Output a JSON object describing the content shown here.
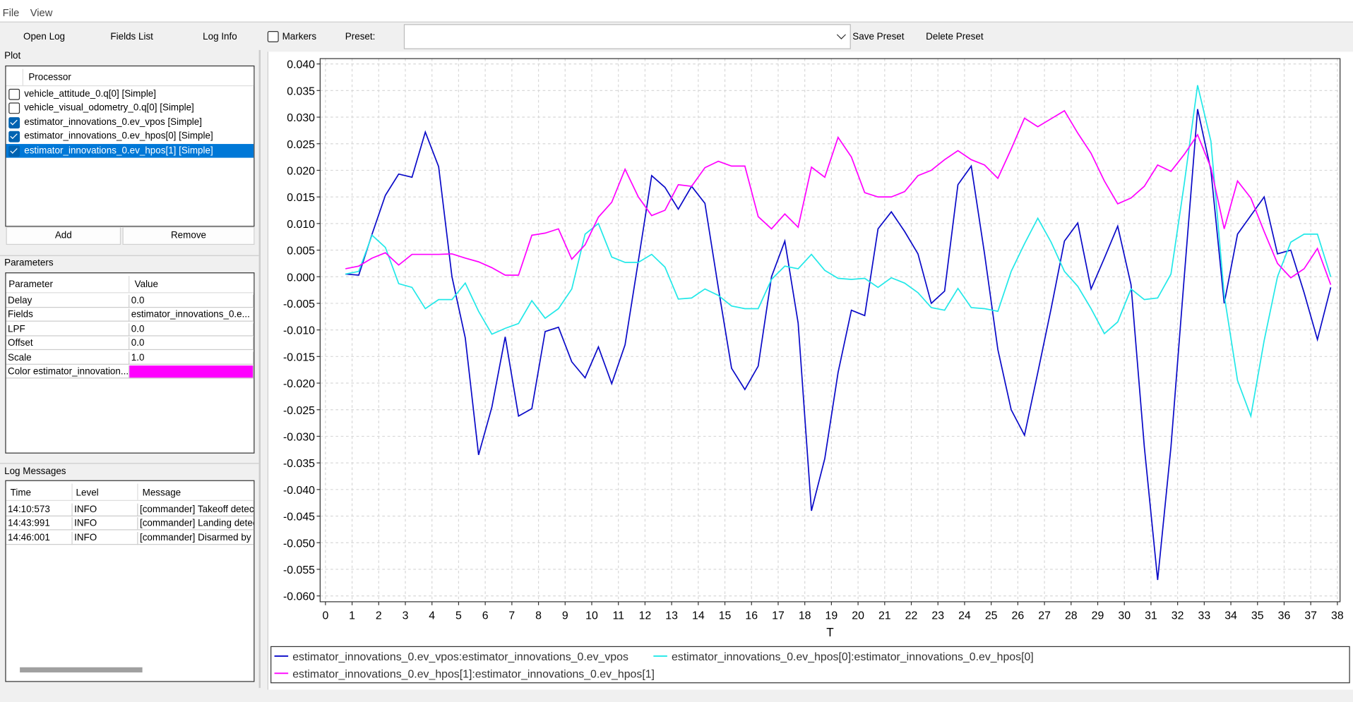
{
  "menu": [
    "File",
    "View"
  ],
  "toolbar": {
    "buttons": [
      "Open Log",
      "Fields List",
      "Log Info"
    ],
    "markers": {
      "label": "Markers",
      "checked": false
    },
    "preset_label": "Preset:",
    "save": "Save Preset",
    "delete": "Delete Preset"
  },
  "plot_panel": {
    "title": "Plot",
    "header": "Processor",
    "items": [
      {
        "label": "vehicle_attitude_0.q[0] [Simple]",
        "checked": false
      },
      {
        "label": "vehicle_visual_odometry_0.q[0] [Simple]",
        "checked": false
      },
      {
        "label": "estimator_innovations_0.ev_vpos [Simple]",
        "checked": true
      },
      {
        "label": "estimator_innovations_0.ev_hpos[0] [Simple]",
        "checked": true
      },
      {
        "label": "estimator_innovations_0.ev_hpos[1] [Simple]",
        "checked": true,
        "selected": true
      }
    ],
    "add": "Add",
    "remove": "Remove"
  },
  "parameters": {
    "title": "Parameters",
    "headers": [
      "Parameter",
      "Value"
    ],
    "rows": [
      {
        "name": "Delay",
        "value": "0.0"
      },
      {
        "name": "Fields",
        "value": "estimator_innovations_0.e..."
      },
      {
        "name": "LPF",
        "value": "0.0"
      },
      {
        "name": "Offset",
        "value": "0.0"
      },
      {
        "name": "Scale",
        "value": "1.0"
      },
      {
        "name": "Color estimator_innovation...",
        "color": "#ff00ff"
      }
    ]
  },
  "log_messages": {
    "title": "Log Messages",
    "headers": [
      "Time",
      "Level",
      "Message"
    ],
    "rows": [
      [
        "14:10:573",
        "INFO",
        "[commander] Takeoff detec"
      ],
      [
        "14:43:991",
        "INFO",
        "[commander] Landing detec"
      ],
      [
        "14:46:001",
        "INFO",
        "[commander] Disarmed by l"
      ]
    ]
  },
  "chart_data": {
    "type": "line",
    "x_label": "T",
    "grid": true,
    "x": [
      0.75,
      1.25,
      1.75,
      2.25,
      2.75,
      3.25,
      3.75,
      4.25,
      4.75,
      5.25,
      5.75,
      6.25,
      6.75,
      7.25,
      7.75,
      8.25,
      8.75,
      9.25,
      9.75,
      10.25,
      10.75,
      11.25,
      11.75,
      12.25,
      12.75,
      13.25,
      13.75,
      14.25,
      14.75,
      15.25,
      15.75,
      16.25,
      16.75,
      17.25,
      17.75,
      18.25,
      18.75,
      19.25,
      19.75,
      20.25,
      20.75,
      21.25,
      21.75,
      22.25,
      22.75,
      23.25,
      23.75,
      24.25,
      24.75,
      25.25,
      25.75,
      26.25,
      26.75,
      27.25,
      27.75,
      28.25,
      28.75,
      29.25,
      29.75,
      30.25,
      30.75,
      31.25,
      31.75,
      32.25,
      32.75,
      33.25,
      33.75,
      34.25,
      34.75,
      35.25,
      35.75,
      36.25,
      36.75,
      37.25,
      37.75
    ],
    "xlim": [
      -0.2,
      38.1
    ],
    "xticks": [
      0,
      1,
      2,
      3,
      4,
      5,
      6,
      7,
      8,
      9,
      10,
      11,
      12,
      13,
      14,
      15,
      16,
      17,
      18,
      19,
      20,
      21,
      22,
      23,
      24,
      25,
      26,
      27,
      28,
      29,
      30,
      31,
      32,
      33,
      34,
      35,
      36,
      37,
      38
    ],
    "ylim": [
      -0.0611,
      0.041
    ],
    "yticks": [
      {
        "value": 0.04,
        "label": "0.040"
      },
      {
        "value": 0.035,
        "label": "0.035"
      },
      {
        "value": 0.03,
        "label": "0.030"
      },
      {
        "value": 0.025,
        "label": "0.025"
      },
      {
        "value": 0.02,
        "label": "0.020"
      },
      {
        "value": 0.015,
        "label": "0.015"
      },
      {
        "value": 0.01,
        "label": "0.010"
      },
      {
        "value": 0.005,
        "label": "0.005"
      },
      {
        "value": 0,
        "label": "0.000"
      },
      {
        "value": -0.005,
        "label": "-0.005"
      },
      {
        "value": -0.01,
        "label": "-0.010"
      },
      {
        "value": -0.015,
        "label": "-0.015"
      },
      {
        "value": -0.02,
        "label": "-0.020"
      },
      {
        "value": -0.025,
        "label": "-0.025"
      },
      {
        "value": -0.03,
        "label": "-0.030"
      },
      {
        "value": -0.035,
        "label": "-0.035"
      },
      {
        "value": -0.04,
        "label": "-0.040"
      },
      {
        "value": -0.045,
        "label": "-0.045"
      },
      {
        "value": -0.05,
        "label": "-0.050"
      },
      {
        "value": -0.055,
        "label": "-0.055"
      },
      {
        "value": -0.06,
        "label": "-0.060"
      }
    ],
    "series": [
      {
        "name": "estimator_innovations_0.ev_vpos:estimator_innovations_0.ev_vpos",
        "color": "#0a0ac8",
        "values": [
          0.0005,
          0.0003,
          0.008,
          0.0153,
          0.0193,
          0.0187,
          0.0272,
          0.0207,
          0.0,
          -0.0115,
          -0.0335,
          -0.0245,
          -0.0113,
          -0.0262,
          -0.0248,
          -0.0103,
          -0.0095,
          -0.016,
          -0.019,
          -0.0132,
          -0.0201,
          -0.0128,
          0.003,
          0.019,
          0.0168,
          0.0127,
          0.017,
          0.0138,
          -0.002,
          -0.0172,
          -0.0212,
          -0.0168,
          0.0,
          0.0067,
          -0.0087,
          -0.044,
          -0.0342,
          -0.018,
          -0.0063,
          -0.0073,
          0.009,
          0.0122,
          0.0085,
          0.0043,
          -0.005,
          -0.0027,
          0.0173,
          0.0208,
          0.0043,
          -0.0137,
          -0.025,
          -0.0298,
          -0.018,
          -0.006,
          0.0067,
          0.0101,
          -0.0023,
          0.0035,
          0.0095,
          -0.0015,
          -0.032,
          -0.057,
          -0.032,
          0.0,
          0.0315,
          0.02,
          -0.005,
          0.008,
          0.0115,
          0.015,
          0.0043,
          0.005,
          -0.003,
          -0.0118,
          -0.002
        ]
      },
      {
        "name": "estimator_innovations_0.ev_hpos[0]:estimator_innovations_0.ev_hpos[0]",
        "color": "#22e8e8",
        "values": [
          0.0005,
          0.001,
          0.0078,
          0.0055,
          -0.0013,
          -0.002,
          -0.006,
          -0.0043,
          -0.0043,
          -0.0012,
          -0.0065,
          -0.0108,
          -0.0097,
          -0.0088,
          -0.0045,
          -0.0078,
          -0.006,
          -0.0023,
          0.008,
          0.01,
          0.0037,
          0.0027,
          0.0027,
          0.0042,
          0.0018,
          -0.0042,
          -0.004,
          -0.0023,
          -0.0035,
          -0.0055,
          -0.006,
          -0.006,
          -0.0005,
          0.002,
          0.0015,
          0.0042,
          0.0012,
          -0.0003,
          -0.0005,
          -0.0003,
          -0.002,
          -0.0002,
          -0.0012,
          -0.003,
          -0.0058,
          -0.0063,
          -0.0022,
          -0.0058,
          -0.006,
          -0.0065,
          0.001,
          0.0062,
          0.011,
          0.0065,
          0.001,
          -0.0018,
          -0.006,
          -0.0107,
          -0.0085,
          -0.0023,
          -0.0043,
          -0.004,
          0.0005,
          0.0175,
          0.036,
          0.0255,
          -0.0035,
          -0.0195,
          -0.0262,
          -0.012,
          0.0,
          0.0065,
          0.008,
          0.008,
          0.0
        ]
      },
      {
        "name": "estimator_innovations_0.ev_hpos[1]:estimator_innovations_0.ev_hpos[1]",
        "color": "#ff00ff",
        "values": [
          0.0015,
          0.002,
          0.0035,
          0.0045,
          0.0022,
          0.0042,
          0.0042,
          0.0042,
          0.0043,
          0.0035,
          0.0028,
          0.0017,
          0.0003,
          0.0003,
          0.0078,
          0.0082,
          0.009,
          0.0033,
          0.006,
          0.0112,
          0.014,
          0.0202,
          0.015,
          0.0115,
          0.0125,
          0.0173,
          0.017,
          0.0205,
          0.0217,
          0.0208,
          0.0208,
          0.0113,
          0.009,
          0.0118,
          0.0093,
          0.0206,
          0.0187,
          0.0262,
          0.0225,
          0.0158,
          0.015,
          0.015,
          0.016,
          0.019,
          0.02,
          0.022,
          0.0237,
          0.022,
          0.021,
          0.0185,
          0.024,
          0.0298,
          0.0282,
          0.0297,
          0.0312,
          0.027,
          0.0232,
          0.018,
          0.0137,
          0.0148,
          0.017,
          0.021,
          0.0198,
          0.023,
          0.0267,
          0.0205,
          0.009,
          0.018,
          0.0148,
          0.0085,
          0.0025,
          -0.0002,
          0.0015,
          0.0053,
          -0.0015
        ]
      }
    ]
  }
}
